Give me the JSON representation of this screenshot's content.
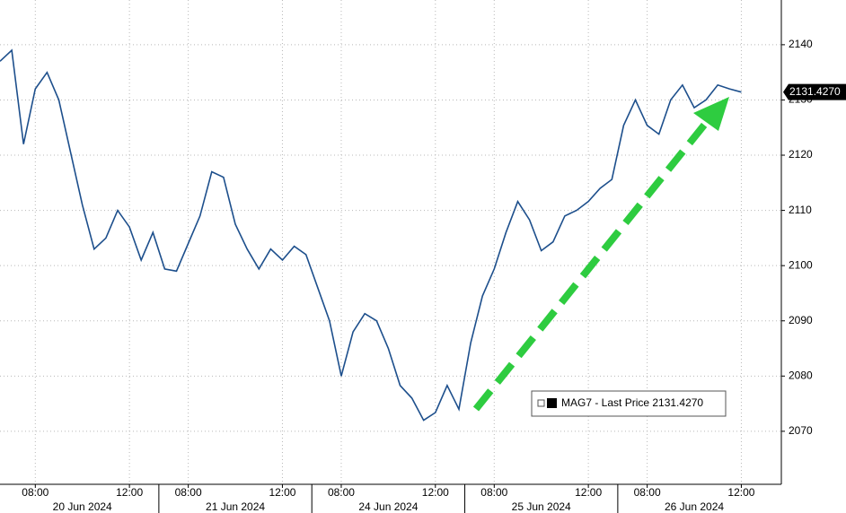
{
  "chart_data": {
    "type": "line",
    "x": [
      0,
      0.5,
      1,
      1.5,
      2,
      2.5,
      3,
      3.5,
      4,
      4.5,
      5,
      5.5,
      6,
      6.5,
      7,
      7.5,
      8,
      8.5,
      9,
      9.5,
      10,
      10.5,
      11,
      11.5,
      12,
      12.5,
      13,
      13.5,
      14,
      14.5,
      15,
      15.5,
      16,
      16.5,
      17,
      17.5,
      18,
      18.5,
      19,
      19.5,
      20,
      20.5,
      21,
      21.5,
      22,
      22.5,
      23,
      23.5,
      24,
      24.5,
      25,
      25.5,
      26,
      26.5,
      27,
      27.5,
      28,
      28.5,
      29,
      29.5,
      30,
      30.5,
      31,
      31.5
    ],
    "series": [
      {
        "name": "MAG7 - Last Price 2131.4270",
        "color": "#1d4f8c",
        "values": [
          2137,
          2139,
          2122,
          2132,
          2135,
          2130,
          2120.5,
          2111,
          2103,
          2105,
          2110,
          2107,
          2101,
          2106,
          2099.4,
          2099,
          2104,
          2109,
          2117,
          2116,
          2107.5,
          2103,
          2099.4,
          2103,
          2101,
          2103.5,
          2102,
          2096,
          2090,
          2080,
          2088,
          2091.3,
          2090,
          2085,
          2078.3,
          2076,
          2072,
          2073.4,
          2078.3,
          2074,
          2086,
          2094.5,
          2099.4,
          2106,
          2111.6,
          2108.3,
          2102.7,
          2104.3,
          2109,
          2110,
          2111.6,
          2114,
          2115.6,
          2125.4,
          2130,
          2125.4,
          2123.8,
          2130,
          2132.7,
          2128.6,
          2130,
          2132.7,
          2132,
          2131.427
        ]
      }
    ],
    "last_price": {
      "value": 2131.427,
      "label": "2131.4270"
    },
    "xlim": [
      0,
      33.2
    ],
    "xticks": [
      {
        "value": 1.5,
        "label": "08:00"
      },
      {
        "value": 5.5,
        "label": "12:00"
      },
      {
        "value": 8,
        "label": "08:00"
      },
      {
        "value": 12,
        "label": "12:00"
      },
      {
        "value": 14.5,
        "label": "08:00"
      },
      {
        "value": 18.5,
        "label": "12:00"
      },
      {
        "value": 21,
        "label": "08:00"
      },
      {
        "value": 25,
        "label": "12:00"
      },
      {
        "value": 27.5,
        "label": "08:00"
      },
      {
        "value": 31.5,
        "label": "12:00"
      }
    ],
    "days": [
      "20 Jun 2024",
      "21 Jun 2024",
      "24 Jun 2024",
      "25 Jun 2024",
      "26 Jun 2024"
    ],
    "ylim": [
      2060.4,
      2148.1
    ],
    "yticks": [
      2070,
      2080,
      2090,
      2100,
      2110,
      2120,
      2130,
      2140
    ],
    "grid": true
  }
}
